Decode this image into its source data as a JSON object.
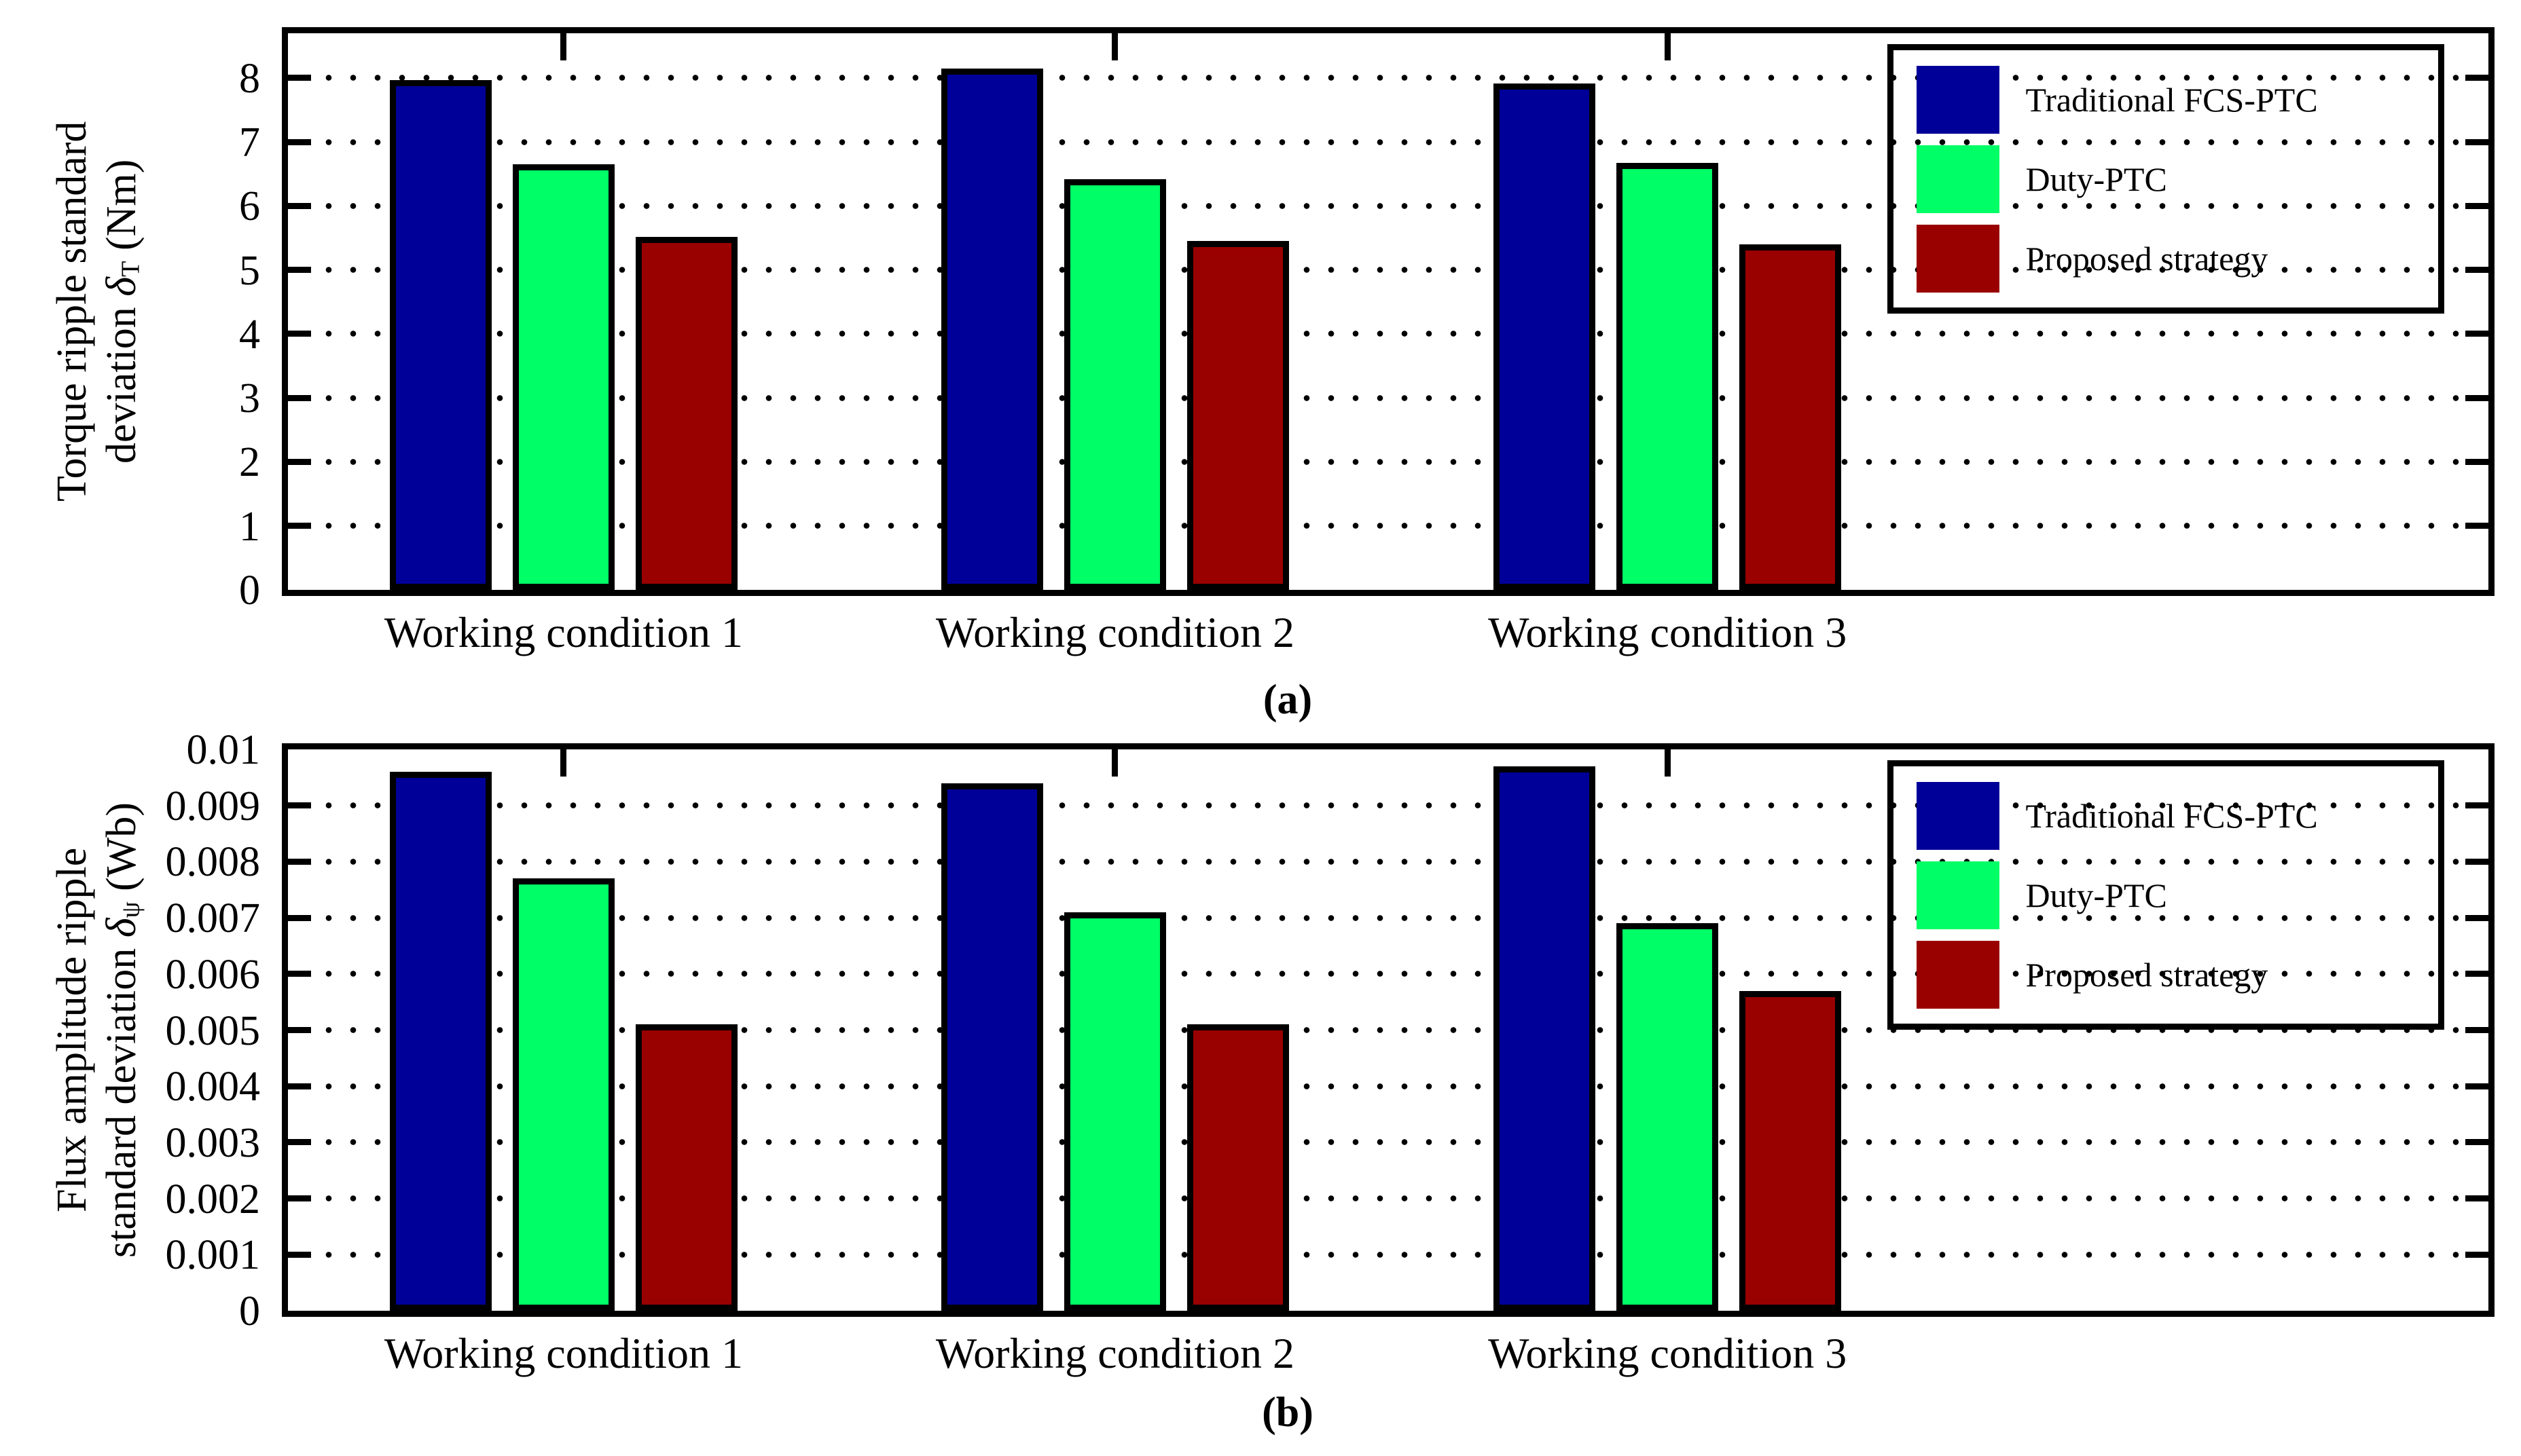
{
  "figure": {
    "background": "#FFFFFF",
    "frame_color": "#000000",
    "grid_style": "dotted"
  },
  "legend": {
    "position": "top-right",
    "items": [
      {
        "label": "Traditional FCS-PTC",
        "color": "#000099"
      },
      {
        "label": "Duty-PTC",
        "color": "#00FF66"
      },
      {
        "label": "Proposed strategy",
        "color": "#990000"
      }
    ]
  },
  "chart_data": [
    {
      "type": "bar",
      "panel_label": "(a)",
      "categories": [
        "Working condition 1",
        "Working condition 2",
        "Working condition 3"
      ],
      "series": [
        {
          "name": "Traditional FCS-PTC",
          "color": "#000099",
          "values": [
            7.97,
            8.15,
            7.92
          ]
        },
        {
          "name": "Duty-PTC",
          "color": "#00FF66",
          "values": [
            6.65,
            6.42,
            6.67
          ]
        },
        {
          "name": "Proposed strategy",
          "color": "#990000",
          "values": [
            5.52,
            5.45,
            5.4
          ]
        }
      ],
      "ylabel": {
        "line1": "Torque ripple standard",
        "line2_prefix": "deviation ",
        "symbol": "δ",
        "subscript": "T",
        "line2_suffix": " (Nm)"
      },
      "yticks": [
        0,
        1,
        2,
        3,
        4,
        5,
        6,
        7,
        8
      ],
      "ytick_labels": [
        "0",
        "1",
        "2",
        "3",
        "4",
        "5",
        "6",
        "7",
        "8"
      ],
      "gridlines": [
        1,
        2,
        3,
        4,
        5,
        6,
        7,
        8
      ],
      "ylim": [
        0,
        8.7
      ],
      "grid": "on",
      "legend_visible": true
    },
    {
      "type": "bar",
      "panel_label": "(b)",
      "categories": [
        "Working condition 1",
        "Working condition 2",
        "Working condition 3"
      ],
      "series": [
        {
          "name": "Traditional FCS-PTC",
          "color": "#000099",
          "values": [
            0.0096,
            0.0094,
            0.0097
          ]
        },
        {
          "name": "Duty-PTC",
          "color": "#00FF66",
          "values": [
            0.0077,
            0.0071,
            0.0069
          ]
        },
        {
          "name": "Proposed strategy",
          "color": "#990000",
          "values": [
            0.0051,
            0.0051,
            0.0057
          ]
        }
      ],
      "ylabel": {
        "line1": "Flux amplitude ripple",
        "line2_prefix": "standard deviation ",
        "symbol": "δ",
        "subscript": "ψ",
        "line2_suffix": " (Wb)"
      },
      "yticks": [
        0,
        0.001,
        0.002,
        0.003,
        0.004,
        0.005,
        0.006,
        0.007,
        0.008,
        0.009,
        0.01
      ],
      "ytick_labels": [
        "0",
        "0.001",
        "0.002",
        "0.003",
        "0.004",
        "0.005",
        "0.006",
        "0.007",
        "0.008",
        "0.009",
        "0.01"
      ],
      "gridlines": [
        0.001,
        0.002,
        0.003,
        0.004,
        0.005,
        0.006,
        0.007,
        0.008,
        0.009
      ],
      "ylim": [
        0,
        0.01
      ],
      "grid": "on",
      "legend_visible": true
    }
  ]
}
